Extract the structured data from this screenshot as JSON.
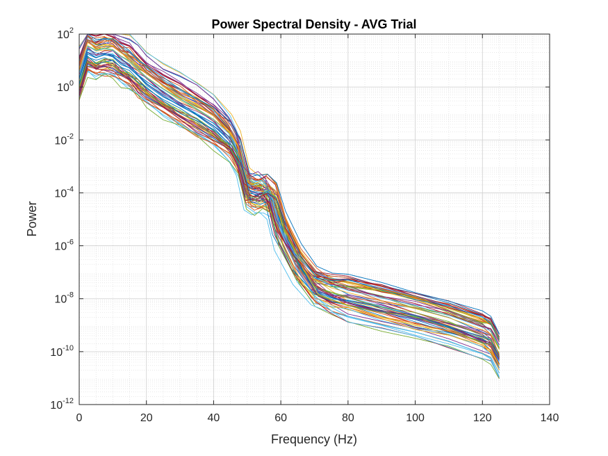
{
  "chart_data": {
    "type": "line",
    "title": "Power Spectral Density - AVG Trial",
    "xlabel": "Frequency (Hz)",
    "ylabel": "Power",
    "xlim": [
      0,
      140
    ],
    "ylim": [
      1e-12,
      100
    ],
    "yscale": "log",
    "grid": true,
    "minor_grid": true,
    "x_ticks": [
      0,
      20,
      40,
      60,
      80,
      100,
      120,
      140
    ],
    "x_tick_labels": [
      "0",
      "20",
      "40",
      "60",
      "80",
      "100",
      "120",
      "140"
    ],
    "y_ticks": [
      1e-12,
      1e-10,
      1e-08,
      1e-06,
      0.0001,
      0.01,
      1,
      100
    ],
    "y_tick_labels": [
      {
        "base": "10",
        "exp": "-12"
      },
      {
        "base": "10",
        "exp": "-10"
      },
      {
        "base": "10",
        "exp": "-8"
      },
      {
        "base": "10",
        "exp": "-6"
      },
      {
        "base": "10",
        "exp": "-4"
      },
      {
        "base": "10",
        "exp": "-2"
      },
      {
        "base": "10",
        "exp": "0"
      },
      {
        "base": "10",
        "exp": "2"
      }
    ],
    "series_colors": [
      "#0072BD",
      "#D95319",
      "#EDB120",
      "#7E2F8E",
      "#77AC30",
      "#4DBEEE",
      "#A2142F"
    ],
    "base_curve": {
      "x": [
        0,
        2.5,
        5,
        7.5,
        10,
        12.5,
        15,
        17.5,
        20,
        25,
        30,
        35,
        40,
        45,
        47.5,
        50,
        52.5,
        55,
        57.5,
        60,
        65,
        70,
        75,
        80,
        90,
        100,
        110,
        120,
        122.5,
        125
      ],
      "y": [
        3,
        30,
        20,
        25,
        22,
        12,
        8,
        4,
        2,
        0.7,
        0.3,
        0.13,
        0.05,
        0.012,
        0.003,
        0.00015,
        0.0001,
        0.00012,
        6e-05,
        4e-06,
        2e-07,
        3e-08,
        1.5e-08,
        1e-08,
        5e-09,
        2.5e-09,
        1.1e-09,
        4e-10,
        2.8e-10,
        7e-11
      ]
    },
    "series_count": 64
  }
}
